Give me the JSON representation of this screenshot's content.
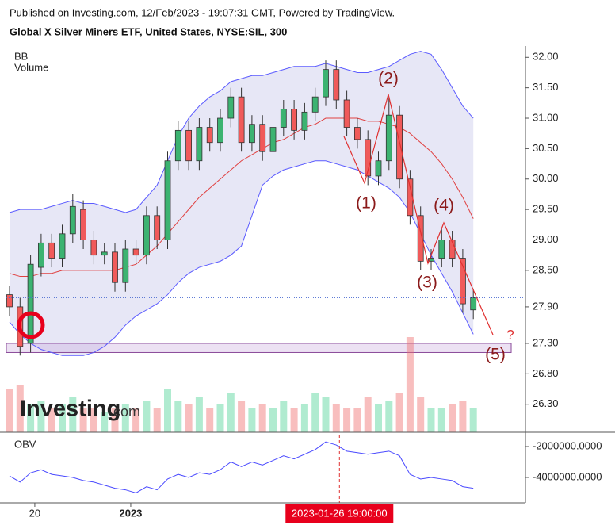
{
  "header": {
    "published": "Published on Investing.com, 12/Feb/2023 - 19:07:31 GMT, Powered by TradingView.",
    "title": "Global X Silver Miners ETF, United States, NYSE:SIL, 300"
  },
  "watermark": [
    "Investing",
    ".com"
  ],
  "chart_data": [
    {
      "type": "candlestick",
      "indicators": [
        "BB",
        "Volume"
      ],
      "up_color": "#3cb371",
      "down_color": "#f05a5a",
      "band_color": "#5b5bff",
      "basis_color": "#e04040",
      "open": [
        28.1,
        27.9,
        27.3,
        28.55,
        28.95,
        28.7,
        29.1,
        29.5,
        29.0,
        28.75,
        28.8,
        28.3,
        28.85,
        28.75,
        29.4,
        29.0,
        30.3,
        30.8,
        30.3,
        30.85,
        30.6,
        31.0,
        31.35,
        30.6,
        30.9,
        30.45,
        30.85,
        31.15,
        30.8,
        31.1,
        31.35,
        31.8,
        31.3,
        30.85,
        30.65,
        30.05,
        30.3,
        31.05,
        30.0,
        29.4,
        28.65,
        28.7,
        29.0,
        28.7,
        27.85
      ],
      "high": [
        28.25,
        28.05,
        28.75,
        29.1,
        29.1,
        29.25,
        29.75,
        29.65,
        29.15,
        28.95,
        28.95,
        29.0,
        29.0,
        29.55,
        29.55,
        30.45,
        30.95,
        30.95,
        31.0,
        31.0,
        31.15,
        31.5,
        31.5,
        31.05,
        31.05,
        31.0,
        31.3,
        31.3,
        31.25,
        31.5,
        31.95,
        31.95,
        31.45,
        31.0,
        30.8,
        30.45,
        31.35,
        31.2,
        30.15,
        29.55,
        28.85,
        29.2,
        29.15,
        28.85,
        28.2
      ],
      "low": [
        27.75,
        27.1,
        27.15,
        28.4,
        28.55,
        28.55,
        28.95,
        28.85,
        28.6,
        28.6,
        28.15,
        28.15,
        28.6,
        28.6,
        28.85,
        28.85,
        30.15,
        30.15,
        30.15,
        30.45,
        30.45,
        30.85,
        30.45,
        30.45,
        30.3,
        30.3,
        30.7,
        30.65,
        30.65,
        30.95,
        31.2,
        31.15,
        30.7,
        30.5,
        29.9,
        29.9,
        30.15,
        29.85,
        29.25,
        28.5,
        28.5,
        28.55,
        28.55,
        27.8,
        27.7
      ],
      "close": [
        27.9,
        27.25,
        28.6,
        28.95,
        28.7,
        29.1,
        29.55,
        29.0,
        28.75,
        28.8,
        28.3,
        28.85,
        28.75,
        29.4,
        29.0,
        30.3,
        30.8,
        30.3,
        30.85,
        30.6,
        31.0,
        31.35,
        30.6,
        30.9,
        30.45,
        30.85,
        31.15,
        30.8,
        31.1,
        31.35,
        31.8,
        31.3,
        30.85,
        30.65,
        30.05,
        30.3,
        31.05,
        30.0,
        29.4,
        28.65,
        28.7,
        29.0,
        28.7,
        27.95,
        28.05
      ],
      "volume": [
        55,
        60,
        35,
        40,
        30,
        35,
        45,
        30,
        30,
        25,
        30,
        35,
        30,
        40,
        30,
        55,
        40,
        35,
        45,
        30,
        35,
        50,
        40,
        30,
        35,
        30,
        40,
        30,
        35,
        50,
        45,
        35,
        30,
        30,
        45,
        35,
        40,
        50,
        120,
        45,
        30,
        30,
        35,
        40,
        30
      ],
      "bb_upper": [
        29.45,
        29.5,
        29.5,
        29.5,
        29.55,
        29.6,
        29.65,
        29.6,
        29.6,
        29.55,
        29.5,
        29.45,
        29.5,
        29.7,
        29.9,
        30.3,
        30.7,
        31.0,
        31.2,
        31.35,
        31.45,
        31.6,
        31.65,
        31.7,
        31.7,
        31.75,
        31.8,
        31.85,
        31.85,
        31.85,
        31.9,
        31.85,
        31.8,
        31.75,
        31.75,
        31.8,
        31.85,
        31.95,
        32.05,
        32.1,
        32.05,
        31.8,
        31.5,
        31.2,
        31.0
      ],
      "bb_basis": [
        28.45,
        28.4,
        28.4,
        28.45,
        28.45,
        28.5,
        28.5,
        28.5,
        28.5,
        28.5,
        28.5,
        28.55,
        28.6,
        28.75,
        28.9,
        29.1,
        29.3,
        29.5,
        29.7,
        29.85,
        30.0,
        30.15,
        30.3,
        30.4,
        30.5,
        30.6,
        30.65,
        30.75,
        30.85,
        30.9,
        31.0,
        31.0,
        31.0,
        31.0,
        30.95,
        30.95,
        30.9,
        30.85,
        30.75,
        30.6,
        30.45,
        30.25,
        30.0,
        29.7,
        29.35
      ],
      "bb_lower": [
        27.65,
        27.45,
        27.3,
        27.2,
        27.15,
        27.1,
        27.1,
        27.1,
        27.15,
        27.25,
        27.4,
        27.6,
        27.75,
        27.85,
        27.95,
        28.1,
        28.3,
        28.45,
        28.55,
        28.6,
        28.65,
        28.75,
        28.9,
        29.4,
        29.9,
        30.05,
        30.15,
        30.2,
        30.25,
        30.3,
        30.3,
        30.25,
        30.2,
        30.15,
        30.05,
        29.95,
        29.85,
        29.7,
        29.45,
        29.1,
        28.75,
        28.45,
        28.15,
        27.8,
        27.45
      ],
      "zone": [
        27.15,
        27.3
      ],
      "ylim": [
        25.84,
        32.16
      ],
      "yticks": [
        {
          "value": 32,
          "label": "32.00"
        },
        {
          "value": 31.5,
          "label": "31.50"
        },
        {
          "value": 31,
          "label": "31.00"
        },
        {
          "value": 30.5,
          "label": "30.50"
        },
        {
          "value": 30,
          "label": "30.00"
        },
        {
          "value": 29.5,
          "label": "29.50"
        },
        {
          "value": 29,
          "label": "29.00"
        },
        {
          "value": 28.5,
          "label": "28.50"
        },
        {
          "value": 27.9,
          "label": "27.90"
        },
        {
          "value": 27.3,
          "label": "27.30"
        },
        {
          "value": 26.8,
          "label": "26.80"
        },
        {
          "value": 26.3,
          "label": "26.30"
        }
      ],
      "xticks": [
        {
          "value": 2.4,
          "label": "20"
        },
        {
          "value": 11.5,
          "label": "2023"
        }
      ],
      "crosshair": {
        "value": 31.3,
        "label": "2023-01-26 19:00:00"
      },
      "annotations": [
        "(1)",
        "(2)",
        "(3)",
        "(4)",
        "(5)",
        "?"
      ]
    },
    {
      "type": "line",
      "title": "OBV",
      "color": "#4a4aff",
      "values": [
        -3900000,
        -4300000,
        -3700000,
        -3500000,
        -3800000,
        -3900000,
        -4000000,
        -4200000,
        -4300000,
        -4500000,
        -4700000,
        -4800000,
        -5000000,
        -4600000,
        -4800000,
        -4100000,
        -3800000,
        -4000000,
        -3700000,
        -3800000,
        -3500000,
        -3000000,
        -3300000,
        -3000000,
        -3200000,
        -2900000,
        -2600000,
        -2800000,
        -2500000,
        -2200000,
        -1700000,
        -1900000,
        -2300000,
        -2400000,
        -2500000,
        -2400000,
        -2300000,
        -2600000,
        -3800000,
        -4100000,
        -4000000,
        -4100000,
        -4200000,
        -4600000,
        -4700000
      ],
      "ylim": [
        -5540000,
        -1230000
      ],
      "yticks": [
        {
          "value": -2000000,
          "label": "-2000000.0000"
        },
        {
          "value": -4000000,
          "label": "-4000000.0000"
        }
      ]
    }
  ]
}
